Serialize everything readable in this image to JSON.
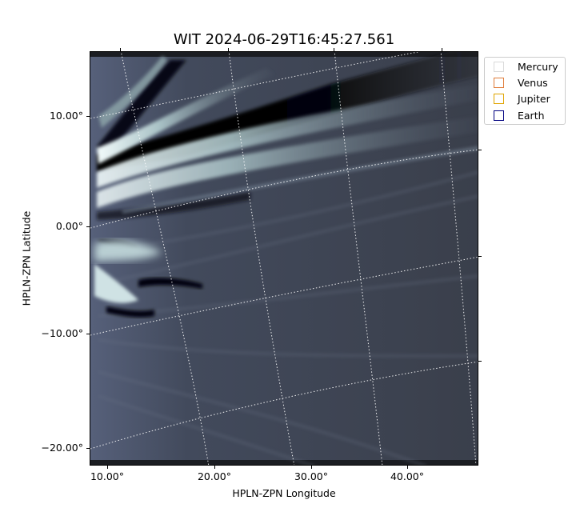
{
  "title": "WIT 2024-06-29T16:45:27.561",
  "x_axis": {
    "label": "HPLN-ZPN Longitude",
    "ticks": [
      "10.00°",
      "20.00°",
      "30.00°",
      "40.00°"
    ]
  },
  "y_axis": {
    "label": "HPLN-ZPN Latitude",
    "ticks": [
      "10.00°",
      "0.00°",
      "−10.00°",
      "−20.00°"
    ]
  },
  "legend": {
    "position": "upper-right, outside plot",
    "items": [
      {
        "label": "Mercury",
        "color": "#d9d9d9"
      },
      {
        "label": "Venus",
        "color": "#e07b39"
      },
      {
        "label": "Jupiter",
        "color": "#e0a400"
      },
      {
        "label": "Earth",
        "color": "#000080"
      }
    ]
  },
  "image": {
    "colormap": "bone",
    "description_icon": "solar-wind-heliospheric-image",
    "grid": "dotted white coordinate grid"
  }
}
